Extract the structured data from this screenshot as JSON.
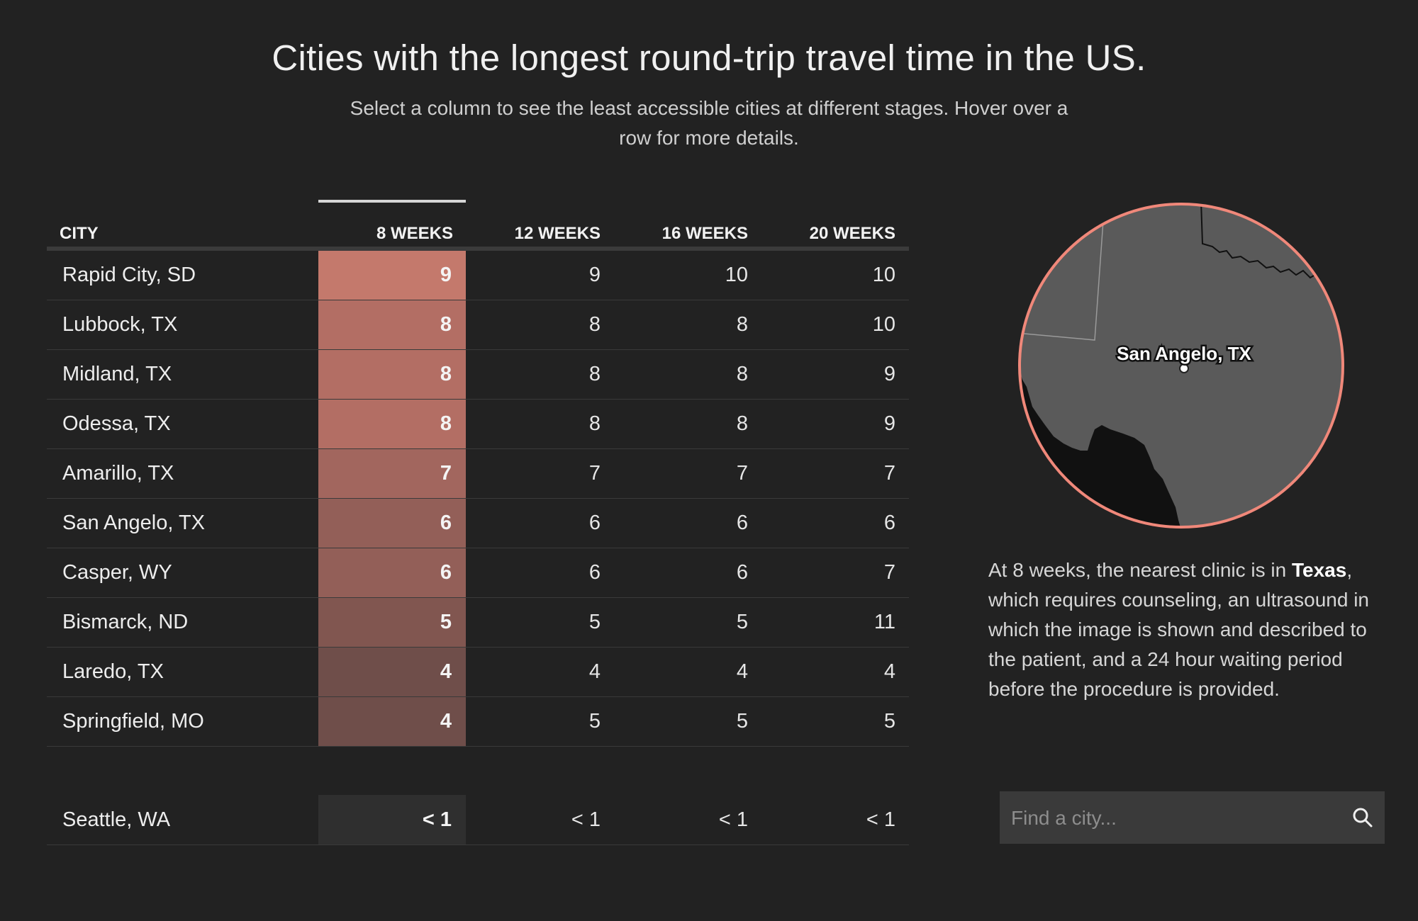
{
  "header": {
    "title": "Cities with the longest round-trip travel time in the US.",
    "subtitle": "Select a column to see the least accessible cities at different stages. Hover over a row for more details."
  },
  "table": {
    "columns": [
      "CITY",
      "8 WEEKS",
      "12 WEEKS",
      "16 WEEKS",
      "20 WEEKS"
    ],
    "active_column": "8 WEEKS",
    "rows": [
      {
        "city": "Rapid City, SD",
        "w8": "9",
        "w12": "9",
        "w16": "10",
        "w20": "10",
        "color": "#c4796c"
      },
      {
        "city": "Lubbock, TX",
        "w8": "8",
        "w12": "8",
        "w16": "8",
        "w20": "10",
        "color": "#b36e64"
      },
      {
        "city": "Midland, TX",
        "w8": "8",
        "w12": "8",
        "w16": "8",
        "w20": "9",
        "color": "#b36e64"
      },
      {
        "city": "Odessa, TX",
        "w8": "8",
        "w12": "8",
        "w16": "8",
        "w20": "9",
        "color": "#b36e64"
      },
      {
        "city": "Amarillo, TX",
        "w8": "7",
        "w12": "7",
        "w16": "7",
        "w20": "7",
        "color": "#a2665e"
      },
      {
        "city": "San Angelo, TX",
        "w8": "6",
        "w12": "6",
        "w16": "6",
        "w20": "6",
        "color": "#935f58"
      },
      {
        "city": "Casper, WY",
        "w8": "6",
        "w12": "6",
        "w16": "6",
        "w20": "7",
        "color": "#935f58"
      },
      {
        "city": "Bismarck, ND",
        "w8": "5",
        "w12": "5",
        "w16": "5",
        "w20": "11",
        "color": "#815650"
      },
      {
        "city": "Laredo, TX",
        "w8": "4",
        "w12": "4",
        "w16": "4",
        "w20": "4",
        "color": "#6f4e4a"
      },
      {
        "city": "Springfield, MO",
        "w8": "4",
        "w12": "5",
        "w16": "5",
        "w20": "5",
        "color": "#6f4e4a"
      }
    ],
    "reference_row": {
      "city": "Seattle, WA",
      "w8": "< 1",
      "w12": "< 1",
      "w16": "< 1",
      "w20": "< 1"
    }
  },
  "map": {
    "city_label": "San Angelo, TX",
    "ring_color": "#f0887a"
  },
  "caption": {
    "prefix": "At 8 weeks, the nearest clinic is in ",
    "state": "Texas",
    "suffix": ", which requires counseling, an ultrasound in which the image is shown and described to the patient, and a 24 hour waiting period before the procedure is provided."
  },
  "search": {
    "placeholder": "Find a city...",
    "icon": "search-icon"
  }
}
